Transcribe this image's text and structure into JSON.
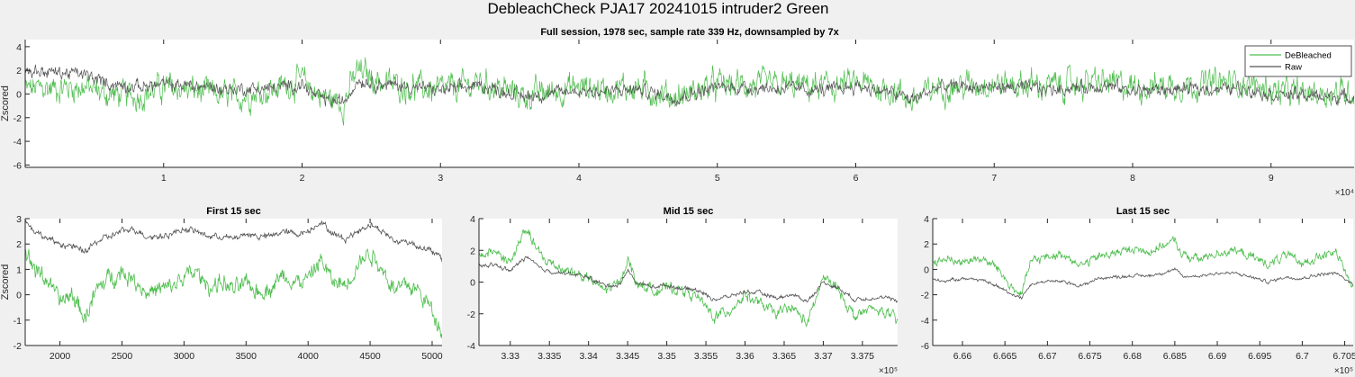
{
  "figure": {
    "title": "DebleachCheck PJA17 20241015  intruder2 Green",
    "colors": {
      "debleached": "#4dbd4d",
      "raw": "#555555",
      "axes_bg": "#ffffff",
      "fig_bg": "#f0f0f0"
    }
  },
  "chart_data": [
    {
      "type": "line",
      "title": "Full session, 1978 sec, sample rate 339 Hz, downsampled by 7x",
      "ylabel": "Zscored",
      "xlabel": "",
      "x_exponent": "×10⁴",
      "xlim": [
        0,
        96000
      ],
      "ylim": [
        -6.2,
        4.6
      ],
      "xticks": [
        10000,
        20000,
        30000,
        40000,
        50000,
        60000,
        70000,
        80000,
        90000
      ],
      "xtick_labels": [
        "1",
        "2",
        "3",
        "4",
        "5",
        "6",
        "7",
        "8",
        "9"
      ],
      "yticks": [
        -6,
        -4,
        -2,
        0,
        2,
        4
      ],
      "ytick_labels": [
        "-6",
        "-4",
        "-2",
        "0",
        "2",
        "4"
      ],
      "legend": {
        "placement": "top-right",
        "entries": [
          "DeBleached",
          "Raw"
        ]
      },
      "grid": false,
      "series": [
        {
          "name": "DeBleached",
          "x": [
            0,
            4000,
            6000,
            8000,
            10000,
            12000,
            15000,
            18000,
            20000,
            21000,
            22000,
            23000,
            24000,
            26000,
            28000,
            30000,
            33000,
            36000,
            40000,
            42000,
            44000,
            47000,
            50000,
            54000,
            58000,
            60000,
            63000,
            64000,
            66000,
            70000,
            74000,
            78000,
            80000,
            84000,
            88000,
            90000,
            92000,
            96000
          ],
          "y": [
            0.4,
            0.6,
            0.0,
            -0.2,
            0.6,
            0.3,
            -0.3,
            0.4,
            1.2,
            0.1,
            -0.4,
            -0.8,
            2.0,
            0.9,
            0.6,
            0.3,
            1.0,
            -0.2,
            0.6,
            0.4,
            0.6,
            -0.3,
            0.8,
            0.7,
            0.6,
            0.9,
            0.2,
            -0.6,
            0.6,
            0.9,
            0.7,
            1.0,
            0.6,
            0.8,
            1.0,
            0.3,
            0.0,
            0.2
          ]
        },
        {
          "name": "Raw",
          "x": [
            0,
            4000,
            6000,
            8000,
            10000,
            12000,
            15000,
            18000,
            20000,
            21000,
            22000,
            23000,
            24000,
            26000,
            28000,
            30000,
            33000,
            36000,
            40000,
            42000,
            44000,
            47000,
            50000,
            54000,
            58000,
            60000,
            63000,
            64000,
            66000,
            70000,
            74000,
            78000,
            80000,
            84000,
            88000,
            90000,
            92000,
            96000
          ],
          "y": [
            2.0,
            1.7,
            0.9,
            0.6,
            0.8,
            0.7,
            0.4,
            0.5,
            0.8,
            -0.2,
            -0.6,
            -0.7,
            1.2,
            0.8,
            0.6,
            0.3,
            0.7,
            -0.2,
            0.3,
            0.2,
            0.4,
            -0.3,
            0.6,
            0.5,
            0.3,
            0.7,
            0.0,
            -0.5,
            0.6,
            0.6,
            0.4,
            0.7,
            0.3,
            0.4,
            0.5,
            0.0,
            -0.1,
            -0.3
          ]
        }
      ]
    },
    {
      "type": "line",
      "title": "First 15 sec",
      "ylabel": "Zscored",
      "xlabel": "",
      "x_exponent": "",
      "xlim": [
        1720,
        5080
      ],
      "ylim": [
        -2,
        3
      ],
      "xticks": [
        2000,
        2500,
        3000,
        3500,
        4000,
        4500,
        5000
      ],
      "xtick_labels": [
        "2000",
        "2500",
        "3000",
        "3500",
        "4000",
        "4500",
        "5000"
      ],
      "yticks": [
        -2,
        -1,
        0,
        1,
        2,
        3
      ],
      "ytick_labels": [
        "-2",
        "-1",
        "0",
        "1",
        "2",
        "3"
      ],
      "grid": false,
      "series": [
        {
          "name": "DeBleached",
          "x": [
            1720,
            1800,
            1900,
            2000,
            2100,
            2200,
            2300,
            2400,
            2500,
            2600,
            2700,
            2800,
            2900,
            3000,
            3100,
            3200,
            3300,
            3400,
            3500,
            3600,
            3700,
            3800,
            3900,
            4000,
            4100,
            4200,
            4300,
            4400,
            4500,
            4600,
            4700,
            4800,
            4900,
            5000,
            5080
          ],
          "y": [
            1.7,
            1.0,
            0.6,
            -0.3,
            0.0,
            -0.9,
            0.2,
            0.7,
            0.9,
            0.6,
            0.1,
            0.2,
            0.3,
            0.7,
            0.9,
            0.3,
            0.5,
            0.2,
            0.4,
            0.1,
            0.3,
            0.8,
            0.5,
            0.6,
            1.4,
            0.5,
            0.4,
            1.2,
            1.7,
            1.0,
            0.2,
            0.4,
            0.1,
            -0.6,
            -1.4
          ]
        },
        {
          "name": "Raw",
          "x": [
            1720,
            1800,
            1900,
            2000,
            2100,
            2200,
            2300,
            2400,
            2500,
            2600,
            2700,
            2800,
            2900,
            3000,
            3100,
            3200,
            3300,
            3400,
            3500,
            3600,
            3700,
            3800,
            3900,
            4000,
            4100,
            4200,
            4300,
            4400,
            4500,
            4600,
            4700,
            4800,
            4900,
            5000,
            5080
          ],
          "y": [
            2.9,
            2.5,
            2.2,
            2.0,
            1.9,
            1.7,
            2.1,
            2.3,
            2.5,
            2.6,
            2.3,
            2.3,
            2.4,
            2.6,
            2.5,
            2.3,
            2.3,
            2.2,
            2.4,
            2.3,
            2.3,
            2.5,
            2.4,
            2.5,
            2.9,
            2.4,
            2.2,
            2.5,
            2.8,
            2.5,
            2.1,
            2.1,
            1.9,
            1.7,
            1.4
          ]
        }
      ]
    },
    {
      "type": "line",
      "title": "Mid 15 sec",
      "ylabel": "",
      "xlabel": "",
      "x_exponent": "×10⁵",
      "xlim": [
        332600,
        337950
      ],
      "ylim": [
        -4,
        4
      ],
      "xticks": [
        333000,
        333500,
        334000,
        334500,
        335000,
        335500,
        336000,
        336500,
        337000,
        337500
      ],
      "xtick_labels": [
        "3.33",
        "3.335",
        "3.34",
        "3.345",
        "3.35",
        "3.355",
        "3.36",
        "3.365",
        "3.37",
        "3.375"
      ],
      "yticks": [
        -4,
        -2,
        0,
        2,
        4
      ],
      "ytick_labels": [
        "-4",
        "-2",
        "0",
        "2",
        "4"
      ],
      "grid": false,
      "series": [
        {
          "name": "DeBleached",
          "x": [
            332600,
            332800,
            333000,
            333200,
            333400,
            333600,
            333800,
            334000,
            334200,
            334400,
            334500,
            334600,
            334800,
            335000,
            335200,
            335400,
            335600,
            335800,
            336000,
            336200,
            336400,
            336600,
            336800,
            337000,
            337200,
            337400,
            337600,
            337800,
            337950
          ],
          "y": [
            1.6,
            2.0,
            1.2,
            3.4,
            1.5,
            1.0,
            0.6,
            0.2,
            -0.5,
            -0.1,
            1.6,
            0.0,
            -0.5,
            -0.4,
            -0.5,
            -1.0,
            -2.2,
            -1.8,
            -0.8,
            -1.4,
            -2.0,
            -1.6,
            -2.6,
            0.3,
            -0.5,
            -2.2,
            -1.7,
            -1.9,
            -2.5
          ]
        },
        {
          "name": "Raw",
          "x": [
            332600,
            332800,
            333000,
            333200,
            333400,
            333600,
            333800,
            334000,
            334200,
            334400,
            334500,
            334600,
            334800,
            335000,
            335200,
            335400,
            335600,
            335800,
            336000,
            336200,
            336400,
            336600,
            336800,
            337000,
            337200,
            337400,
            337600,
            337800,
            337950
          ],
          "y": [
            1.0,
            1.1,
            0.7,
            1.6,
            0.8,
            0.6,
            0.5,
            0.3,
            -0.2,
            -0.2,
            0.8,
            0.0,
            -0.3,
            -0.2,
            -0.4,
            -0.5,
            -1.1,
            -0.9,
            -0.6,
            -0.7,
            -1.0,
            -0.8,
            -1.2,
            0.0,
            -0.4,
            -1.1,
            -1.0,
            -1.0,
            -1.2
          ]
        }
      ]
    },
    {
      "type": "line",
      "title": "Last 15 sec",
      "ylabel": "",
      "xlabel": "",
      "x_exponent": "×10⁵",
      "xlim": [
        665650,
        670600
      ],
      "ylim": [
        -6,
        4
      ],
      "xticks": [
        666000,
        666500,
        667000,
        667500,
        668000,
        668500,
        669000,
        669500,
        670000,
        670500
      ],
      "xtick_labels": [
        "6.66",
        "6.665",
        "6.67",
        "6.675",
        "6.68",
        "6.685",
        "6.69",
        "6.695",
        "6.7",
        "6.705"
      ],
      "yticks": [
        -6,
        -4,
        -2,
        0,
        2,
        4
      ],
      "ytick_labels": [
        "-6",
        "-4",
        "-2",
        "0",
        "2",
        "4"
      ],
      "grid": false,
      "series": [
        {
          "name": "DeBleached",
          "x": [
            665650,
            665800,
            666000,
            666200,
            666400,
            666600,
            666700,
            666800,
            667000,
            667200,
            667400,
            667600,
            667800,
            668000,
            668200,
            668400,
            668500,
            668600,
            668800,
            669000,
            669200,
            669400,
            669600,
            669800,
            670000,
            670200,
            670400,
            670600
          ],
          "y": [
            0.6,
            0.8,
            0.6,
            0.9,
            0.2,
            -1.6,
            -1.9,
            0.6,
            1.0,
            1.2,
            0.3,
            1.0,
            1.3,
            1.6,
            1.4,
            2.0,
            2.2,
            1.1,
            0.8,
            1.3,
            1.5,
            1.0,
            0.4,
            1.1,
            0.5,
            1.0,
            1.3,
            -1.5
          ]
        },
        {
          "name": "Raw",
          "x": [
            665650,
            665800,
            666000,
            666200,
            666400,
            666600,
            666700,
            666800,
            667000,
            667200,
            667400,
            667600,
            667800,
            668000,
            668200,
            668400,
            668500,
            668600,
            668800,
            669000,
            669200,
            669400,
            669600,
            669800,
            670000,
            670200,
            670400,
            670600
          ],
          "y": [
            -0.8,
            -0.9,
            -0.7,
            -0.8,
            -1.3,
            -2.0,
            -2.2,
            -1.2,
            -0.9,
            -1.0,
            -1.3,
            -0.7,
            -0.6,
            -0.5,
            -0.5,
            -0.2,
            0.0,
            -0.6,
            -0.5,
            -0.3,
            -0.3,
            -0.6,
            -1.0,
            -0.6,
            -0.7,
            -0.4,
            -0.3,
            -1.2
          ]
        }
      ]
    }
  ]
}
